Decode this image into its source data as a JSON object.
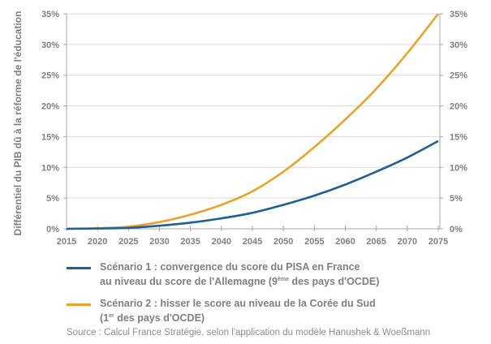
{
  "chart_data": {
    "type": "line",
    "title": "",
    "xlabel": "",
    "ylabel": "Différentiel du PIB dû à la réforme de l'éducation",
    "x": [
      2015,
      2020,
      2025,
      2030,
      2035,
      2040,
      2045,
      2050,
      2055,
      2060,
      2065,
      2070,
      2075
    ],
    "xlim": [
      2015,
      2075
    ],
    "ylim": [
      0,
      35
    ],
    "x_ticks": [
      "2015",
      "2020",
      "2025",
      "2030",
      "2035",
      "2040",
      "2045",
      "2050",
      "2055",
      "2060",
      "2065",
      "2070",
      "2075"
    ],
    "y_ticks": [
      "0%",
      "5%",
      "10%",
      "15%",
      "20%",
      "25%",
      "30%",
      "35%"
    ],
    "y_tick_values": [
      0,
      5,
      10,
      15,
      20,
      25,
      30,
      35
    ],
    "grid": true,
    "dual_y_axis": true,
    "legend_position": "bottom",
    "series": [
      {
        "name": "Scénario 1 : convergence du score du PISA en France au niveau du score de l'Allemagne (9ème des pays d'OCDE)",
        "color": "#1f5f94",
        "values": [
          0,
          0.05,
          0.15,
          0.5,
          1.0,
          1.7,
          2.6,
          3.9,
          5.4,
          7.2,
          9.3,
          11.6,
          14.3
        ]
      },
      {
        "name": "Scénario 2 : hisser le score au niveau de la Corée du Sud (1er des pays d'OCDE)",
        "color": "#eaa32a",
        "values": [
          0,
          0.1,
          0.35,
          1.1,
          2.3,
          3.9,
          6.1,
          9.3,
          13.3,
          17.8,
          22.8,
          28.6,
          35.0
        ]
      }
    ]
  },
  "legend": {
    "s1_line1": "Scénario 1 : convergence du score du PISA en France",
    "s1_line2_a": "au niveau du score de l'Allemagne (9",
    "s1_sup": "ème",
    "s1_line2_b": " des pays d'OCDE)",
    "s2_line1": "Scénario 2 :  hisser le score au niveau de la Corée du Sud",
    "s2_line2_a": "(1",
    "s2_sup": "er",
    "s2_line2_b": " des pays d'OCDE)"
  },
  "source": "Source : Calcul  France Stratégie, selon l'application du modèle Hanushek & Woeßmann"
}
